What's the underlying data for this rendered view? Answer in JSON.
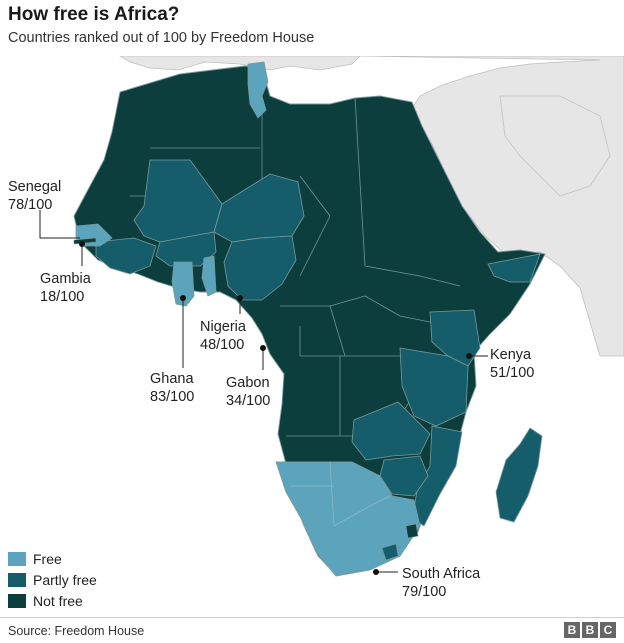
{
  "title": "How free is Africa?",
  "subtitle": "Countries ranked out of 100 by Freedom House",
  "colors": {
    "free": "#5ba4bb",
    "partly_free": "#155d6b",
    "not_free": "#0b3e3c",
    "other_land": "#e6e6e6",
    "border": "#7a9a9a"
  },
  "legend": [
    {
      "label": "Free",
      "color": "#5ba4bb"
    },
    {
      "label": "Partly free",
      "color": "#155d6b"
    },
    {
      "label": "Not free",
      "color": "#0b3e3c"
    }
  ],
  "callouts": [
    {
      "country": "Senegal",
      "score": "78/100"
    },
    {
      "country": "Gambia",
      "score": "18/100"
    },
    {
      "country": "Ghana",
      "score": "83/100"
    },
    {
      "country": "Nigeria",
      "score": "48/100"
    },
    {
      "country": "Gabon",
      "score": "34/100"
    },
    {
      "country": "Kenya",
      "score": "51/100"
    },
    {
      "country": "South Africa",
      "score": "79/100"
    }
  ],
  "source": "Source: Freedom House",
  "brand": [
    "B",
    "B",
    "C"
  ]
}
